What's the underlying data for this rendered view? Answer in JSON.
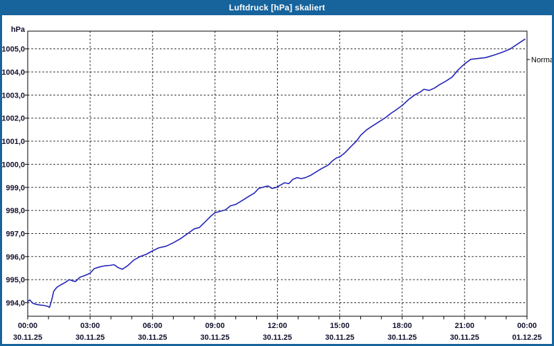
{
  "window": {
    "title": "Luftdruck [hPa] skaliert"
  },
  "colors": {
    "titlebar": "#17639c",
    "window_border": "#17639c",
    "line": "#2323b8",
    "axis": "#000000",
    "grid": "#1a1a1a",
    "label_text": "#10102c",
    "title_text": "#ffffff",
    "plot_background": "#ffffff"
  },
  "chart": {
    "y_axis_unit": "hPa",
    "legend_label": "Normal"
  },
  "chart_data": {
    "type": "line",
    "title": "Luftdruck [hPa] skaliert",
    "xlabel": "",
    "ylabel": "hPa",
    "grid": "dashed",
    "legend_position": "right-outside",
    "ylim": [
      993.4,
      1005.8
    ],
    "xlim_hours": [
      0,
      24
    ],
    "y_ticks": [
      994,
      995,
      996,
      997,
      998,
      999,
      1000,
      1001,
      1002,
      1003,
      1004,
      1005
    ],
    "y_tick_labels": [
      "994,0",
      "995,0",
      "996,0",
      "997,0",
      "998,0",
      "999,0",
      "1000,0",
      "1001,0",
      "1002,0",
      "1003,0",
      "1004,0",
      "1005,0"
    ],
    "x_major_ticks": [
      {
        "hour": 0,
        "time": "00:00",
        "date": "30.11.25"
      },
      {
        "hour": 3,
        "time": "03:00",
        "date": "30.11.25"
      },
      {
        "hour": 6,
        "time": "06:00",
        "date": "30.11.25"
      },
      {
        "hour": 9,
        "time": "09:00",
        "date": "30.11.25"
      },
      {
        "hour": 12,
        "time": "12:00",
        "date": "30.11.25"
      },
      {
        "hour": 15,
        "time": "15:00",
        "date": "30.11.25"
      },
      {
        "hour": 18,
        "time": "18:00",
        "date": "30.11.25"
      },
      {
        "hour": 21,
        "time": "21:00",
        "date": "30.11.25"
      },
      {
        "hour": 24,
        "time": "00:00",
        "date": "01.12.25"
      }
    ],
    "x_minor_tick_hours": 1,
    "series": [
      {
        "name": "Normal",
        "unit": "hPa",
        "x_hours": [
          0,
          0.1,
          0.25,
          0.4,
          0.6,
          0.8,
          0.95,
          1.05,
          1.15,
          1.25,
          1.4,
          1.6,
          1.8,
          2.0,
          2.15,
          2.3,
          2.5,
          2.75,
          3.0,
          3.2,
          3.45,
          3.7,
          3.95,
          4.15,
          4.35,
          4.55,
          4.8,
          5.1,
          5.4,
          5.7,
          6.0,
          6.3,
          6.65,
          7.0,
          7.35,
          7.7,
          8.0,
          8.25,
          8.5,
          8.8,
          9.0,
          9.25,
          9.5,
          9.75,
          10.0,
          10.35,
          10.7,
          10.9,
          11.1,
          11.35,
          11.55,
          11.75,
          11.95,
          12.15,
          12.35,
          12.55,
          12.75,
          12.95,
          13.15,
          13.35,
          13.6,
          13.85,
          14.1,
          14.45,
          14.65,
          14.85,
          15.0,
          15.25,
          15.55,
          15.8,
          16.0,
          16.3,
          16.55,
          16.85,
          17.2,
          17.45,
          17.7,
          18.0,
          18.3,
          18.6,
          18.85,
          19.05,
          19.3,
          19.55,
          19.8,
          20.1,
          20.4,
          20.7,
          21.0,
          21.3,
          21.6,
          22.0,
          22.3,
          22.7,
          23.0,
          23.2,
          23.45,
          23.7,
          23.9
        ],
        "values": [
          994.05,
          994.12,
          993.98,
          993.93,
          993.9,
          993.88,
          993.85,
          993.8,
          994.1,
          994.5,
          994.67,
          994.78,
          994.88,
          995.0,
          994.95,
          994.92,
          995.1,
          995.18,
          995.28,
          995.48,
          995.55,
          995.6,
          995.62,
          995.65,
          995.52,
          995.45,
          995.6,
          995.85,
          996.0,
          996.1,
          996.25,
          996.38,
          996.45,
          996.6,
          996.78,
          997.0,
          997.2,
          997.26,
          997.48,
          997.75,
          997.9,
          997.96,
          998.02,
          998.2,
          998.26,
          998.45,
          998.65,
          998.76,
          998.95,
          999.02,
          999.06,
          998.95,
          999.0,
          999.1,
          999.2,
          999.16,
          999.35,
          999.42,
          999.38,
          999.42,
          999.52,
          999.66,
          999.8,
          999.97,
          1000.15,
          1000.28,
          1000.32,
          1000.5,
          1000.78,
          1001.0,
          1001.25,
          1001.5,
          1001.65,
          1001.82,
          1002.02,
          1002.2,
          1002.35,
          1002.55,
          1002.8,
          1003.0,
          1003.12,
          1003.25,
          1003.2,
          1003.3,
          1003.45,
          1003.6,
          1003.78,
          1004.1,
          1004.35,
          1004.55,
          1004.58,
          1004.62,
          1004.7,
          1004.82,
          1004.92,
          1005.0,
          1005.15,
          1005.3,
          1005.42
        ]
      }
    ]
  }
}
